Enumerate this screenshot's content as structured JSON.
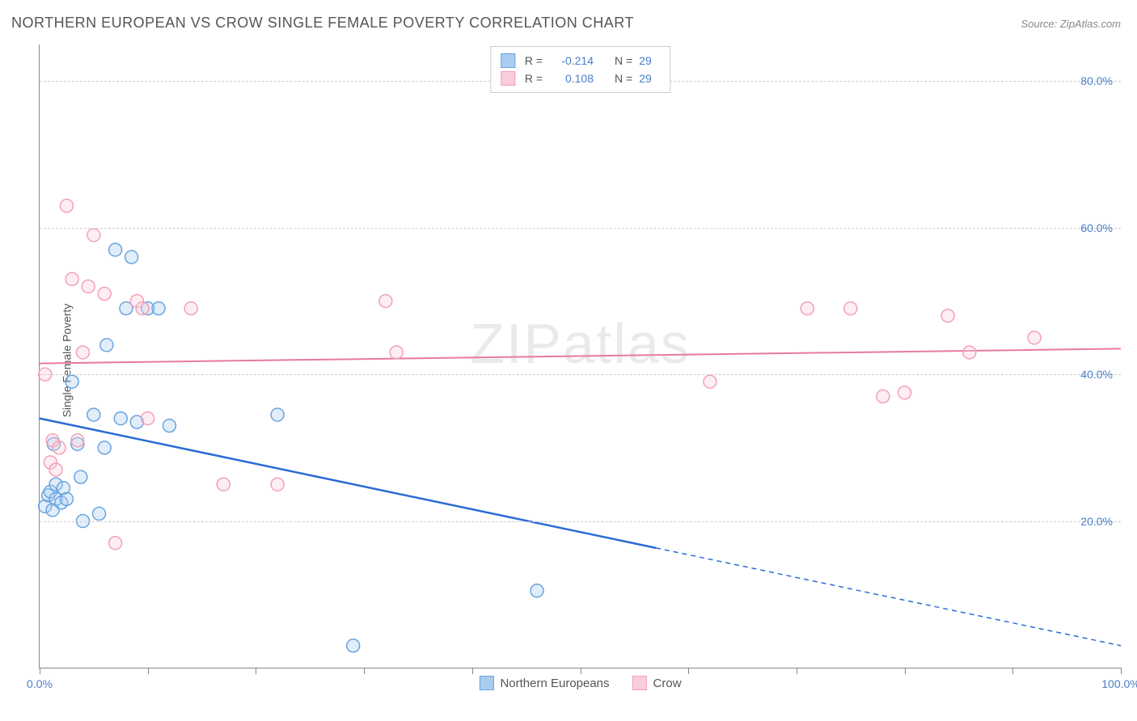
{
  "title": "NORTHERN EUROPEAN VS CROW SINGLE FEMALE POVERTY CORRELATION CHART",
  "source": "Source: ZipAtlas.com",
  "y_axis_label": "Single Female Poverty",
  "watermark": "ZIPatlas",
  "chart": {
    "type": "scatter",
    "xlim": [
      0,
      100
    ],
    "ylim": [
      0,
      85
    ],
    "x_ticks": [
      0,
      10,
      20,
      30,
      40,
      50,
      60,
      70,
      80,
      90,
      100
    ],
    "x_tick_labels": {
      "0": "0.0%",
      "100": "100.0%"
    },
    "y_gridlines": [
      20,
      40,
      60,
      80
    ],
    "y_tick_labels": {
      "20": "20.0%",
      "40": "40.0%",
      "60": "60.0%",
      "80": "80.0%"
    },
    "background_color": "#ffffff",
    "grid_color": "#cccccc",
    "axis_color": "#888888",
    "tick_label_color": "#4a7ec9",
    "marker_radius": 8,
    "marker_stroke_width": 1.5,
    "marker_fill_opacity": 0.35,
    "series": [
      {
        "name": "Northern Europeans",
        "color_stroke": "#6ba3e0",
        "color_fill": "#a9cdef",
        "r": "-0.214",
        "n": "29",
        "trend": {
          "slope": -0.31,
          "intercept": 34.0,
          "solid_until_x": 57,
          "line_color": "#2a6cd4",
          "line_width": 2.5
        },
        "points": [
          [
            0.5,
            22
          ],
          [
            0.8,
            23.5
          ],
          [
            1.0,
            24
          ],
          [
            1.2,
            21.5
          ],
          [
            1.5,
            23
          ],
          [
            1.3,
            30.5
          ],
          [
            1.5,
            25
          ],
          [
            2.0,
            22.5
          ],
          [
            2.2,
            24.5
          ],
          [
            2.5,
            23
          ],
          [
            3.0,
            39
          ],
          [
            3.5,
            30.5
          ],
          [
            3.8,
            26
          ],
          [
            4.0,
            20
          ],
          [
            5.0,
            34.5
          ],
          [
            5.5,
            21
          ],
          [
            6.0,
            30
          ],
          [
            6.2,
            44
          ],
          [
            7.0,
            57
          ],
          [
            7.5,
            34
          ],
          [
            8.0,
            49
          ],
          [
            8.5,
            56
          ],
          [
            9.0,
            33.5
          ],
          [
            10.0,
            49
          ],
          [
            11.0,
            49
          ],
          [
            12.0,
            33
          ],
          [
            22.0,
            34.5
          ],
          [
            29.0,
            3
          ],
          [
            46.0,
            10.5
          ]
        ]
      },
      {
        "name": "Crow",
        "color_stroke": "#f3a0b8",
        "color_fill": "#f9cdd9",
        "r": "0.108",
        "n": "29",
        "trend": {
          "slope": 0.02,
          "intercept": 41.5,
          "solid_until_x": 100,
          "line_color": "#e87aa0",
          "line_width": 2
        },
        "points": [
          [
            0.5,
            40
          ],
          [
            1.0,
            28
          ],
          [
            1.2,
            31
          ],
          [
            1.5,
            27
          ],
          [
            1.8,
            30
          ],
          [
            2.5,
            63
          ],
          [
            3.0,
            53
          ],
          [
            3.5,
            31
          ],
          [
            4.0,
            43
          ],
          [
            4.5,
            52
          ],
          [
            5.0,
            59
          ],
          [
            6.0,
            51
          ],
          [
            7.0,
            17
          ],
          [
            9.0,
            50
          ],
          [
            9.5,
            49
          ],
          [
            10.0,
            34
          ],
          [
            14.0,
            49
          ],
          [
            17.0,
            25
          ],
          [
            22.0,
            25
          ],
          [
            32.0,
            50
          ],
          [
            33.0,
            43
          ],
          [
            62.0,
            39
          ],
          [
            71.0,
            49
          ],
          [
            75.0,
            49
          ],
          [
            78.0,
            37
          ],
          [
            80.0,
            37.5
          ],
          [
            84.0,
            48
          ],
          [
            86.0,
            43
          ],
          [
            92.0,
            45
          ]
        ]
      }
    ]
  },
  "legend_bottom": [
    {
      "label": "Northern Europeans",
      "stroke": "#6ba3e0",
      "fill": "#a9cdef"
    },
    {
      "label": "Crow",
      "stroke": "#f3a0b8",
      "fill": "#f9cdd9"
    }
  ]
}
